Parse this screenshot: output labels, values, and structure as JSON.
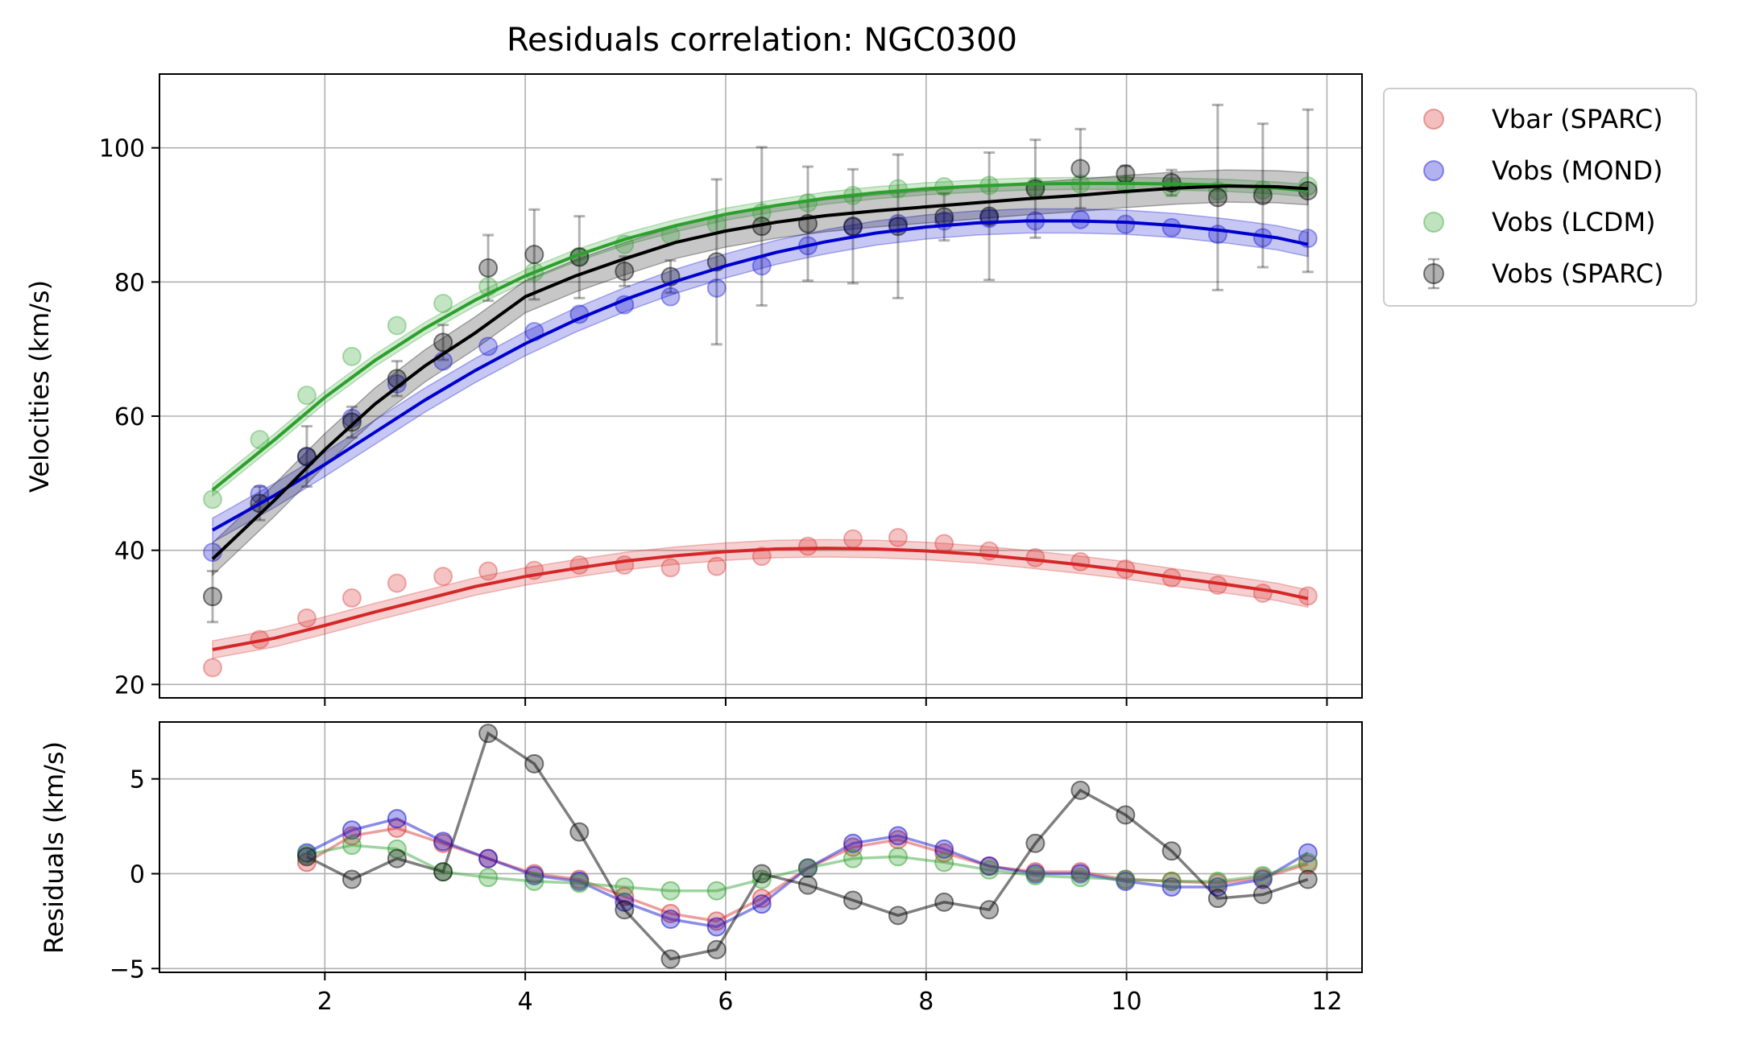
{
  "chart_data": {
    "type": "scatter",
    "title": "Residuals correlation: NGC0300",
    "colors": {
      "vbar": "#d62728",
      "mond": "#0000cc",
      "lcdm": "#2ca02c",
      "sparc": "#000000"
    },
    "top": {
      "ylabel": "Velocities (km/s)",
      "ylim": [
        18,
        111
      ],
      "yticks": [
        20,
        40,
        60,
        80,
        100
      ],
      "grid": true,
      "legend_position": "outside-top-right",
      "series": [
        {
          "name": "Vbar (SPARC)",
          "key": "vbar",
          "x": [
            0.88,
            1.35,
            1.82,
            2.27,
            2.72,
            3.18,
            3.63,
            4.09,
            4.54,
            4.99,
            5.45,
            5.91,
            6.36,
            6.82,
            7.27,
            7.72,
            8.18,
            8.63,
            9.09,
            9.54,
            9.99,
            10.45,
            10.91,
            11.36,
            11.81
          ],
          "y": [
            22.5,
            26.7,
            29.9,
            32.9,
            35.1,
            36.1,
            36.9,
            37.0,
            37.8,
            37.8,
            37.4,
            37.6,
            39.1,
            40.6,
            41.7,
            41.9,
            41.0,
            39.9,
            38.9,
            38.3,
            37.2,
            35.9,
            34.8,
            33.6,
            33.2
          ]
        },
        {
          "name": "Vobs (MOND)",
          "key": "mond",
          "x": [
            0.88,
            1.35,
            1.82,
            2.27,
            2.72,
            3.18,
            3.63,
            4.09,
            4.54,
            4.99,
            5.45,
            5.91,
            6.36,
            6.82,
            7.27,
            7.72,
            8.18,
            8.63,
            9.09,
            9.54,
            9.99,
            10.45,
            10.91,
            11.36,
            11.81
          ],
          "y": [
            39.7,
            48.4,
            53.9,
            59.7,
            64.8,
            68.2,
            70.4,
            72.6,
            75.2,
            76.6,
            77.8,
            79.1,
            82.4,
            85.4,
            88.2,
            88.7,
            89.1,
            89.5,
            89.1,
            89.3,
            88.6,
            88.1,
            87.1,
            86.6,
            86.5
          ]
        },
        {
          "name": "Vobs (LCDM)",
          "key": "lcdm",
          "x": [
            0.88,
            1.35,
            1.82,
            2.27,
            2.72,
            3.18,
            3.63,
            4.09,
            4.54,
            4.99,
            5.45,
            5.91,
            6.36,
            6.82,
            7.27,
            7.72,
            8.18,
            8.63,
            9.09,
            9.54,
            9.99,
            10.45,
            10.91,
            11.36,
            11.81
          ],
          "y": [
            47.6,
            56.5,
            63.1,
            68.9,
            73.5,
            76.8,
            79.3,
            81.5,
            83.8,
            85.6,
            87.0,
            88.6,
            90.3,
            91.8,
            92.9,
            93.9,
            94.2,
            94.4,
            94.2,
            94.6,
            94.5,
            94.1,
            93.6,
            93.7,
            94.3
          ]
        },
        {
          "name": "Vobs (SPARC)",
          "key": "sparc",
          "x": [
            0.88,
            1.35,
            1.82,
            2.27,
            2.72,
            3.18,
            3.63,
            4.09,
            4.54,
            4.99,
            5.45,
            5.91,
            6.36,
            6.82,
            7.27,
            7.72,
            8.18,
            8.63,
            9.09,
            9.54,
            9.99,
            10.45,
            10.91,
            11.36,
            11.81
          ],
          "y": [
            33.1,
            47.0,
            54.0,
            59.1,
            65.6,
            71.0,
            82.1,
            84.1,
            83.7,
            81.6,
            80.8,
            83.0,
            88.3,
            88.7,
            88.3,
            88.3,
            89.7,
            89.8,
            93.9,
            96.9,
            96.1,
            94.8,
            92.6,
            92.9,
            93.6
          ],
          "err": [
            3.8,
            2.5,
            4.5,
            2.3,
            2.6,
            2.6,
            4.9,
            6.7,
            6.1,
            2.2,
            2.4,
            12.3,
            11.8,
            8.5,
            8.5,
            10.7,
            3.5,
            9.5,
            7.3,
            5.9,
            1.2,
            1.9,
            13.8,
            10.7,
            12.1
          ]
        }
      ],
      "fits": [
        {
          "key": "vbar",
          "x": [
            0.88,
            1.5,
            2.0,
            2.5,
            3.0,
            3.5,
            4.0,
            4.5,
            5.0,
            5.5,
            6.0,
            6.5,
            7.0,
            7.5,
            8.0,
            8.5,
            9.0,
            9.5,
            10.0,
            10.5,
            11.0,
            11.5,
            11.81
          ],
          "y": [
            25.2,
            26.9,
            28.8,
            30.8,
            32.7,
            34.6,
            36.1,
            37.3,
            38.4,
            39.2,
            39.8,
            40.2,
            40.3,
            40.2,
            39.9,
            39.4,
            38.7,
            37.9,
            37.0,
            35.9,
            34.9,
            33.8,
            32.8
          ],
          "band": 1.3
        },
        {
          "key": "mond",
          "x": [
            0.88,
            1.5,
            2.0,
            2.5,
            3.0,
            3.5,
            4.0,
            4.5,
            5.0,
            5.5,
            6.0,
            6.5,
            7.0,
            7.5,
            8.0,
            8.5,
            9.0,
            9.5,
            10.0,
            10.5,
            11.0,
            11.5,
            11.81
          ],
          "y": [
            43.0,
            48.2,
            52.8,
            57.6,
            62.4,
            66.8,
            70.8,
            74.3,
            77.4,
            80.1,
            82.4,
            84.4,
            86.0,
            87.3,
            88.2,
            88.8,
            89.1,
            89.1,
            88.9,
            88.4,
            87.6,
            86.6,
            85.6
          ],
          "band": 1.8
        },
        {
          "key": "lcdm",
          "x": [
            0.88,
            1.5,
            2.0,
            2.5,
            3.0,
            3.5,
            4.0,
            4.5,
            5.0,
            5.5,
            6.0,
            6.5,
            7.0,
            7.5,
            8.0,
            8.5,
            9.0,
            9.5,
            10.0,
            10.5,
            11.0,
            11.5,
            11.81
          ],
          "y": [
            49.0,
            56.5,
            62.8,
            68.3,
            73.1,
            77.3,
            80.9,
            83.9,
            86.4,
            88.4,
            90.1,
            91.4,
            92.5,
            93.3,
            93.9,
            94.3,
            94.6,
            94.7,
            94.7,
            94.6,
            94.4,
            94.0,
            93.6
          ],
          "band": 0.9
        },
        {
          "key": "sparc",
          "x": [
            0.88,
            1.5,
            2.0,
            2.5,
            3.0,
            3.5,
            4.0,
            4.5,
            5.0,
            5.5,
            6.0,
            6.5,
            7.0,
            7.5,
            8.0,
            8.5,
            9.0,
            9.5,
            10.0,
            10.5,
            11.0,
            11.5,
            11.81
          ],
          "y": [
            38.7,
            47.5,
            55.0,
            61.8,
            67.5,
            72.4,
            77.8,
            80.9,
            83.5,
            85.9,
            87.6,
            88.9,
            89.9,
            90.6,
            91.2,
            91.8,
            92.4,
            92.9,
            93.5,
            94.0,
            94.3,
            94.2,
            93.9
          ],
          "band": 2.4
        }
      ]
    },
    "bottom": {
      "ylabel": "Residuals (km/s)",
      "xlim": [
        0.35,
        12.35
      ],
      "ylim": [
        -5.2,
        8.0
      ],
      "xticks": [
        2,
        4,
        6,
        8,
        10,
        12
      ],
      "yticks": [
        -5,
        0,
        5
      ],
      "grid": true,
      "x": [
        1.82,
        2.27,
        2.72,
        3.18,
        3.63,
        4.09,
        4.54,
        4.99,
        5.45,
        5.91,
        6.36,
        6.82,
        7.27,
        7.72,
        8.18,
        8.63,
        9.09,
        9.54,
        9.99,
        10.45,
        10.91,
        11.36,
        11.81
      ],
      "series": [
        {
          "key": "vbar",
          "y": [
            0.6,
            2.0,
            2.4,
            1.6,
            0.8,
            0.0,
            -0.3,
            -1.2,
            -2.1,
            -2.5,
            -1.3,
            0.3,
            1.4,
            1.8,
            1.1,
            0.4,
            0.1,
            0.1,
            -0.3,
            -0.4,
            -0.5,
            -0.2,
            0.5
          ]
        },
        {
          "key": "mond",
          "y": [
            1.1,
            2.3,
            2.9,
            1.7,
            0.8,
            -0.1,
            -0.4,
            -1.5,
            -2.4,
            -2.8,
            -1.6,
            0.3,
            1.6,
            2.0,
            1.3,
            0.4,
            0.0,
            0.0,
            -0.4,
            -0.7,
            -0.7,
            -0.3,
            1.1
          ]
        },
        {
          "key": "lcdm",
          "y": [
            1.0,
            1.5,
            1.3,
            0.1,
            -0.2,
            -0.4,
            -0.5,
            -0.7,
            -0.9,
            -0.9,
            -0.3,
            0.3,
            0.8,
            0.9,
            0.6,
            0.2,
            -0.1,
            -0.2,
            -0.3,
            -0.4,
            -0.4,
            -0.1,
            0.6
          ]
        },
        {
          "key": "sparc",
          "y": [
            0.9,
            -0.3,
            0.8,
            0.1,
            7.4,
            5.8,
            2.2,
            -1.9,
            -4.5,
            -4.0,
            0.0,
            -0.6,
            -1.4,
            -2.2,
            -1.5,
            -1.9,
            1.6,
            4.4,
            3.1,
            1.2,
            -1.3,
            -1.1,
            -0.3
          ]
        }
      ]
    }
  }
}
